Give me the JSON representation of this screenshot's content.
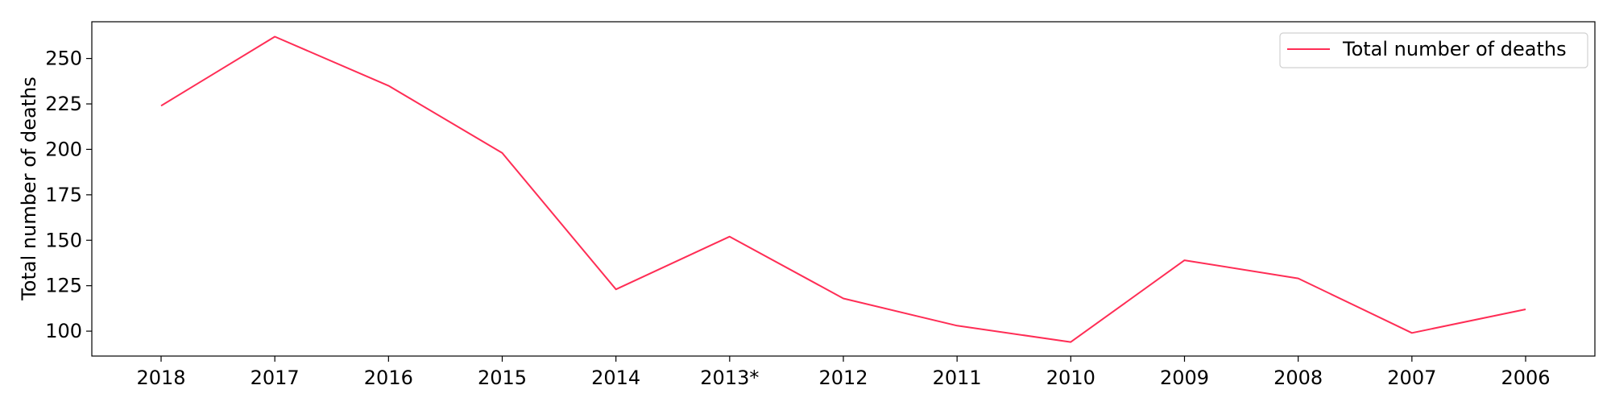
{
  "chart_data": {
    "type": "line",
    "title": "",
    "xlabel": "",
    "ylabel": "Total number of deaths",
    "categories": [
      "2018",
      "2017",
      "2016",
      "2015",
      "2014",
      "2013*",
      "2012",
      "2011",
      "2010",
      "2009",
      "2008",
      "2007",
      "2006"
    ],
    "series": [
      {
        "name": "Total number of deaths",
        "color": "#ff2d55",
        "values": [
          224,
          262,
          235,
          198,
          123,
          152,
          118,
          103,
          94,
          139,
          129,
          99,
          112
        ]
      }
    ],
    "ylim": [
      86.3,
      270.2
    ],
    "yticks": [
      100,
      125,
      150,
      175,
      200,
      225,
      250
    ],
    "grid": false,
    "legend_position": "top-right"
  }
}
